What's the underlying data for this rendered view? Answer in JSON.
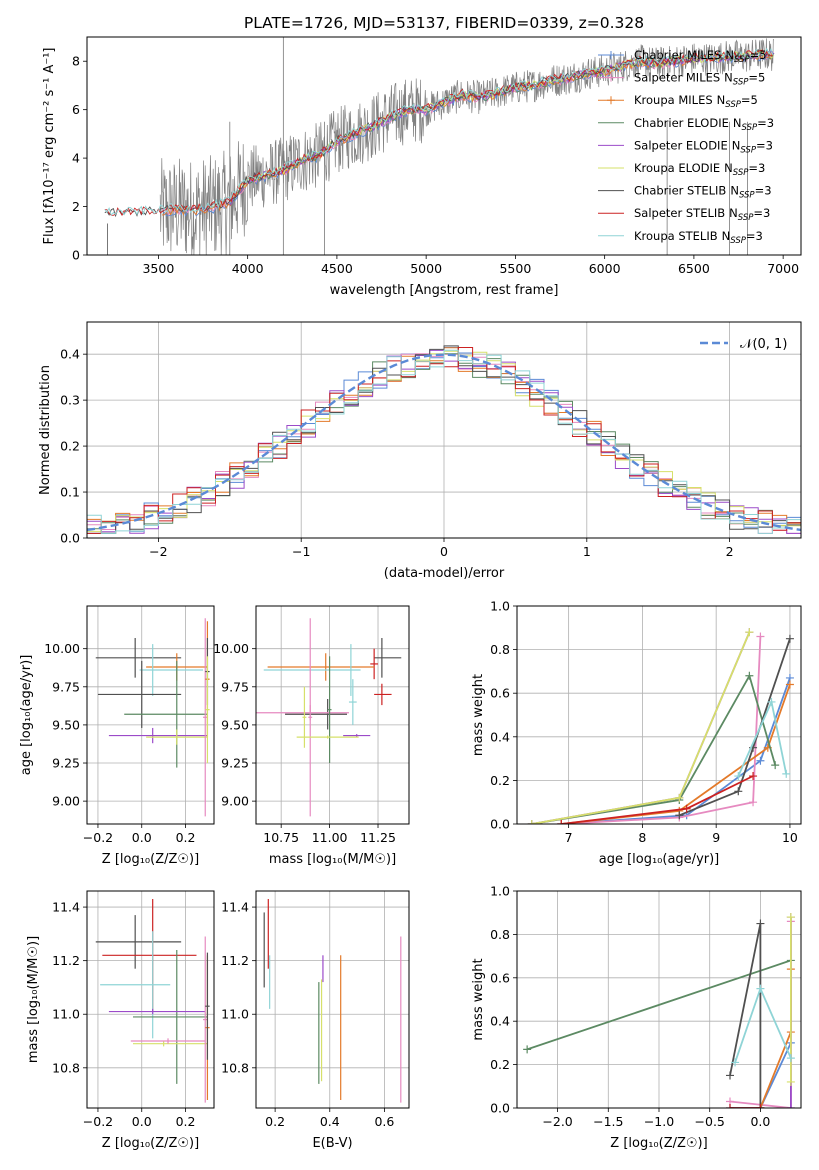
{
  "figure": {
    "title": "PLATE=1726, MJD=53137, FIBERID=0339, z=0.328"
  },
  "colors": {
    "Chabrier MILES": "#5b8ad6",
    "Salpeter MILES": "#e68ac0",
    "Kroupa MILES": "#e37a2a",
    "Chabrier ELODIE": "#5c8a63",
    "Salpeter ELODIE": "#9b4bc9",
    "Kroupa ELODIE": "#d6e06a",
    "Chabrier STELIB": "#505050",
    "Salpeter STELIB": "#cc2222",
    "Kroupa STELIB": "#8fd4d6",
    "data": "#808080",
    "gauss": "#5b8ad6",
    "grid": "#b0b0b0"
  },
  "chart_data": [
    {
      "id": "spectrum",
      "type": "line",
      "title": "PLATE=1726, MJD=53137, FIBERID=0339, z=0.328",
      "xlabel": "wavelength [Angstrom, rest frame]",
      "ylabel": "Flux [fλ10⁻¹⁷ erg cm⁻² s⁻¹ A⁻¹]",
      "xlim": [
        3100,
        7100
      ],
      "ylim": [
        0,
        9
      ],
      "xticks": [
        3500,
        4000,
        4500,
        5000,
        5500,
        6000,
        6500,
        7000
      ],
      "yticks": [
        0,
        2,
        4,
        6,
        8
      ],
      "grid": false,
      "legend_position": "right",
      "legend": [
        {
          "name": "Chabrier MILES",
          "sub": "SSP",
          "value": "5"
        },
        {
          "name": "Salpeter MILES",
          "sub": "SSP",
          "value": "5"
        },
        {
          "name": "Kroupa MILES",
          "sub": "SSP",
          "value": "5"
        },
        {
          "name": "Chabrier ELODIE",
          "sub": "SSP",
          "value": "3"
        },
        {
          "name": "Salpeter ELODIE",
          "sub": "SSP",
          "value": "3"
        },
        {
          "name": "Kroupa ELODIE",
          "sub": "SSP",
          "value": "3"
        },
        {
          "name": "Chabrier STELIB",
          "sub": "SSP",
          "value": "3"
        },
        {
          "name": "Salpeter STELIB",
          "sub": "SSP",
          "value": "3"
        },
        {
          "name": "Kroupa STELIB",
          "sub": "SSP",
          "value": "3"
        }
      ],
      "model_continuum": {
        "x": [
          3200,
          3300,
          3400,
          3500,
          3600,
          3700,
          3800,
          3900,
          4000,
          4100,
          4200,
          4300,
          4400,
          4500,
          4600,
          4700,
          4800,
          4900,
          5000,
          5100,
          5200,
          5300,
          5400,
          5500,
          5600,
          5700,
          5800,
          5900,
          6000,
          6100,
          6200,
          6300,
          6400,
          6500,
          6600,
          6700,
          6800,
          6900,
          7000
        ],
        "y": [
          1.7,
          1.7,
          1.75,
          1.8,
          1.9,
          1.85,
          1.95,
          2.2,
          3.1,
          3.3,
          3.5,
          3.9,
          4.1,
          4.7,
          5.0,
          5.3,
          5.7,
          6.0,
          6.0,
          6.3,
          6.6,
          6.5,
          6.7,
          6.9,
          7.0,
          7.2,
          7.3,
          7.5,
          7.6,
          7.8,
          8.0,
          7.9,
          8.0,
          8.1,
          8.1,
          8.2,
          8.2,
          8.3,
          8.2
        ]
      },
      "observed_range": {
        "start": 3510,
        "end": 6950,
        "step": 3
      }
    },
    {
      "id": "residuals",
      "type": "line",
      "xlabel": "(data-model)/error",
      "ylabel": "Normed distribution",
      "xlim": [
        -2.5,
        2.5
      ],
      "ylim": [
        0,
        0.47
      ],
      "xticks": [
        -2,
        -1,
        0,
        1,
        2
      ],
      "yticks": [
        0.0,
        0.1,
        0.2,
        0.3,
        0.4
      ],
      "grid": true,
      "legend_position": "top-right",
      "gauss_label": "𝒩(0, 1)",
      "bin_width": 0.1
    },
    {
      "id": "age_vs_Z",
      "type": "scatter",
      "xlabel": "Z [log₁₀(Z/Z☉)]",
      "ylabel": "age  [log₁₀(age/yr)]",
      "xlim": [
        -0.25,
        0.33
      ],
      "ylim": [
        8.85,
        10.28
      ],
      "xticks": [
        -0.2,
        0.0,
        0.2
      ],
      "yticks": [
        9.0,
        9.25,
        9.5,
        9.75,
        10.0
      ],
      "grid": true,
      "errorbars": [
        {
          "model": "Chabrier STELIB",
          "x": -0.03,
          "xerr": [
            0.18,
            0.21
          ],
          "y": 9.94,
          "yerr": 0.13
        },
        {
          "model": "Kroupa MILES",
          "x": 0.16,
          "xerr": [
            0.14,
            0.14
          ],
          "y": 9.88,
          "yerr": 0.09
        },
        {
          "model": "Kroupa STELIB",
          "x": 0.05,
          "xerr": [
            0.06,
            0.23
          ],
          "y": 9.86,
          "yerr": 0.17
        },
        {
          "model": "Chabrier STELIB",
          "x": 0.0,
          "xerr": [
            0.2,
            0.18
          ],
          "y": 9.7,
          "yerr": 0.22
        },
        {
          "model": "Chabrier ELODIE",
          "x": 0.16,
          "xerr": [
            0.24,
            0.14
          ],
          "y": 9.57,
          "yerr": 0.35
        },
        {
          "model": "Salpeter ELODIE",
          "x": 0.05,
          "xerr": [
            0.2,
            0.25
          ],
          "y": 9.43,
          "yerr": 0.05
        },
        {
          "model": "Kroupa ELODIE",
          "x": 0.16,
          "xerr": [
            0.14,
            0.14
          ],
          "y": 9.42,
          "yerr": 0.05
        },
        {
          "model": "Salpeter MILES",
          "x": 0.29,
          "xerr": [
            0.01,
            0.01
          ],
          "y": 9.55,
          "yerr": 0.65
        },
        {
          "model": "Kroupa MILES",
          "x": 0.3,
          "xerr": [
            0.01,
            0.01
          ],
          "y": 9.8,
          "yerr": 0.38
        },
        {
          "model": "Chabrier STELIB",
          "x": 0.3,
          "xerr": [
            0.01,
            0.01
          ],
          "y": 9.85,
          "yerr": 0.22
        },
        {
          "model": "Kroupa ELODIE",
          "x": 0.3,
          "xerr": [
            0.01,
            0.01
          ],
          "y": 9.6,
          "yerr": 0.35
        }
      ]
    },
    {
      "id": "age_vs_mass",
      "type": "scatter",
      "xlabel": "mass [log₁₀(M/M☉)]",
      "ylabel": "",
      "xlim": [
        10.62,
        11.41
      ],
      "ylim": [
        8.85,
        10.28
      ],
      "xticks": [
        10.75,
        11.0,
        11.25
      ],
      "xticklabels": [
        "10.75",
        "11.00",
        "11.25"
      ],
      "yticks": [
        9.0,
        9.25,
        9.5,
        9.75,
        10.0
      ],
      "grid": true,
      "errorbars": [
        {
          "model": "Chabrier STELIB",
          "x": 11.27,
          "xerr": [
            0.04,
            0.1
          ],
          "y": 9.94,
          "yerr": 0.13
        },
        {
          "model": "Salpeter STELIB",
          "x": 11.23,
          "xerr": [
            0.02,
            0.02
          ],
          "y": 9.9,
          "yerr": 0.1
        },
        {
          "model": "Kroupa MILES",
          "x": 10.98,
          "xerr": [
            0.3,
            0.25
          ],
          "y": 9.88,
          "yerr": 0.09
        },
        {
          "model": "Kroupa STELIB",
          "x": 11.11,
          "xerr": [
            0.45,
            0.05
          ],
          "y": 9.86,
          "yerr": 0.17
        },
        {
          "model": "Salpeter MILES",
          "x": 10.9,
          "xerr": [
            0.01,
            0.01
          ],
          "y": 9.55,
          "yerr": 0.65
        },
        {
          "model": "Salpeter STELIB",
          "x": 11.27,
          "xerr": [
            0.04,
            0.05
          ],
          "y": 9.7,
          "yerr": 0.07
        },
        {
          "model": "Chabrier STELIB",
          "x": 10.99,
          "xerr": [
            0.22,
            0.1
          ],
          "y": 9.57,
          "yerr": 0.1
        },
        {
          "model": "Salpeter MILES",
          "x": 10.9,
          "xerr": [
            0.32,
            0.2
          ],
          "y": 9.58,
          "yerr": 0.05
        },
        {
          "model": "Kroupa STELIB",
          "x": 11.12,
          "xerr": [
            0.02,
            0.02
          ],
          "y": 9.65,
          "yerr": 0.15
        },
        {
          "model": "Chabrier ELODIE",
          "x": 11.0,
          "xerr": [
            0.01,
            0.01
          ],
          "y": 9.6,
          "yerr": 0.35
        },
        {
          "model": "Salpeter ELODIE",
          "x": 11.14,
          "xerr": [
            0.07,
            0.07
          ],
          "y": 9.43,
          "yerr": 0.01
        },
        {
          "model": "Kroupa ELODIE",
          "x": 10.99,
          "xerr": [
            0.16,
            0.16
          ],
          "y": 9.42,
          "yerr": 0.01
        },
        {
          "model": "Kroupa ELODIE",
          "x": 10.87,
          "xerr": [
            0.01,
            0.01
          ],
          "y": 9.55,
          "yerr": 0.2
        }
      ]
    },
    {
      "id": "weight_vs_age",
      "type": "line",
      "xlabel": "age  [log₁₀(age/yr)]",
      "ylabel": "mass weight",
      "xlim": [
        6.3,
        10.15
      ],
      "ylim": [
        0,
        1
      ],
      "xticks": [
        7,
        8,
        9,
        10
      ],
      "yticks": [
        0.0,
        0.2,
        0.4,
        0.6,
        0.8,
        1.0
      ],
      "grid": true,
      "series": [
        {
          "model": "Chabrier MILES",
          "x": [
            6.9,
            8.6,
            9.6,
            10.0
          ],
          "y": [
            0.0,
            0.04,
            0.29,
            0.67
          ]
        },
        {
          "model": "Salpeter MILES",
          "x": [
            6.9,
            8.5,
            9.5,
            9.6
          ],
          "y": [
            0.0,
            0.03,
            0.1,
            0.86
          ]
        },
        {
          "model": "Kroupa MILES",
          "x": [
            6.9,
            8.5,
            9.7,
            10.0
          ],
          "y": [
            0.0,
            0.06,
            0.35,
            0.64
          ]
        },
        {
          "model": "Chabrier ELODIE",
          "x": [
            6.5,
            8.5,
            9.45,
            9.8
          ],
          "y": [
            0.0,
            0.11,
            0.68,
            0.27
          ]
        },
        {
          "model": "Salpeter ELODIE",
          "x": [
            6.5,
            8.5,
            9.45
          ],
          "y": [
            0.0,
            0.12,
            0.88
          ]
        },
        {
          "model": "Kroupa ELODIE",
          "x": [
            6.5,
            8.5,
            9.45
          ],
          "y": [
            0.0,
            0.12,
            0.88
          ]
        },
        {
          "model": "Chabrier STELIB",
          "x": [
            8.5,
            9.3,
            9.5,
            10.0
          ],
          "y": [
            0.04,
            0.15,
            0.35,
            0.85
          ]
        },
        {
          "model": "Salpeter STELIB",
          "x": [
            6.9,
            8.6,
            9.5
          ],
          "y": [
            0.0,
            0.07,
            0.22
          ]
        },
        {
          "model": "Kroupa STELIB",
          "x": [
            9.3,
            9.75,
            9.95
          ],
          "y": [
            0.22,
            0.56,
            0.23
          ]
        }
      ]
    },
    {
      "id": "mass_vs_Z",
      "type": "scatter",
      "xlabel": "Z [log₁₀(Z/Z☉)]",
      "ylabel": "mass [log₁₀(M/M☉)]",
      "xlim": [
        -0.25,
        0.33
      ],
      "ylim": [
        10.65,
        11.46
      ],
      "xticks": [
        -0.2,
        0.0,
        0.2
      ],
      "yticks": [
        10.8,
        11.0,
        11.2,
        11.4
      ],
      "grid": true,
      "errorbars": [
        {
          "model": "Chabrier STELIB",
          "x": -0.03,
          "xerr": [
            0.18,
            0.21
          ],
          "y": 11.27,
          "yerr": 0.1
        },
        {
          "model": "Salpeter STELIB",
          "x": 0.05,
          "xerr": [
            0.23,
            0.2
          ],
          "y": 11.22,
          "yerr": 0.21
        },
        {
          "model": "Kroupa STELIB",
          "x": 0.05,
          "xerr": [
            0.24,
            0.08
          ],
          "y": 11.11,
          "yerr": 0.2
        },
        {
          "model": "Chabrier ELODIE",
          "x": 0.16,
          "xerr": [
            0.2,
            0.14
          ],
          "y": 10.99,
          "yerr": 0.25
        },
        {
          "model": "Salpeter ELODIE",
          "x": 0.05,
          "xerr": [
            0.2,
            0.24
          ],
          "y": 11.01,
          "yerr": 0.01
        },
        {
          "model": "Kroupa ELODIE",
          "x": 0.1,
          "xerr": [
            0.14,
            0.2
          ],
          "y": 10.89,
          "yerr": 0.01
        },
        {
          "model": "Salpeter MILES",
          "x": 0.29,
          "xerr": [
            0.01,
            0.01
          ],
          "y": 10.98,
          "yerr": 0.31
        },
        {
          "model": "Kroupa MILES",
          "x": 0.3,
          "xerr": [
            0.01,
            0.01
          ],
          "y": 10.95,
          "yerr": 0.27
        },
        {
          "model": "Chabrier STELIB",
          "x": 0.3,
          "xerr": [
            0.01,
            0.01
          ],
          "y": 11.03,
          "yerr": 0.2
        },
        {
          "model": "Salpeter MILES",
          "x": 0.12,
          "xerr": [
            0.17,
            0.17
          ],
          "y": 10.9,
          "yerr": 0.01
        }
      ]
    },
    {
      "id": "mass_vs_EBV",
      "type": "scatter",
      "xlabel": "E(B-V)",
      "ylabel": "",
      "xlim": [
        0.13,
        0.69
      ],
      "ylim": [
        10.65,
        11.46
      ],
      "xticks": [
        0.2,
        0.4,
        0.6
      ],
      "yticks": [
        10.8,
        11.0,
        11.2,
        11.4
      ],
      "grid": true,
      "errorbars": [
        {
          "model": "Chabrier STELIB",
          "x": 0.16,
          "y": 11.24,
          "yerr": 0.14
        },
        {
          "model": "Salpeter STELIB",
          "x": 0.175,
          "y": 11.3,
          "yerr": 0.13
        },
        {
          "model": "Kroupa STELIB",
          "x": 0.18,
          "y": 11.12,
          "yerr": 0.1
        },
        {
          "model": "Salpeter ELODIE",
          "x": 0.375,
          "y": 11.17,
          "yerr": 0.05
        },
        {
          "model": "Chabrier ELODIE",
          "x": 0.36,
          "y": 10.93,
          "yerr": 0.19
        },
        {
          "model": "Kroupa ELODIE",
          "x": 0.37,
          "y": 10.94,
          "yerr": 0.19
        },
        {
          "model": "Kroupa MILES",
          "x": 0.44,
          "y": 10.95,
          "yerr": 0.27
        },
        {
          "model": "Salpeter MILES",
          "x": 0.66,
          "y": 10.98,
          "yerr": 0.31
        }
      ]
    },
    {
      "id": "weight_vs_Z",
      "type": "line",
      "xlabel": "Z [log₁₀(Z/Z☉)]",
      "ylabel": "mass weight",
      "xlim": [
        -2.4,
        0.4
      ],
      "ylim": [
        0,
        1
      ],
      "xticks": [
        -2.0,
        -1.5,
        -1.0,
        -0.5,
        0.0
      ],
      "yticks": [
        0.0,
        0.2,
        0.4,
        0.6,
        0.8,
        1.0
      ],
      "grid": true,
      "series": [
        {
          "model": "Chabrier MILES",
          "x": [
            -0.3,
            0.0,
            0.3
          ],
          "y": [
            0.0,
            0.0,
            0.3
          ]
        },
        {
          "model": "Salpeter MILES",
          "x": [
            -0.3,
            0.3,
            0.3
          ],
          "y": [
            0.03,
            0.0,
            0.86
          ]
        },
        {
          "model": "Kroupa MILES",
          "x": [
            0.0,
            0.3,
            0.3
          ],
          "y": [
            0.0,
            0.35,
            0.64
          ]
        },
        {
          "model": "Chabrier ELODIE",
          "x": [
            -2.3,
            0.3
          ],
          "y": [
            0.27,
            0.68
          ]
        },
        {
          "model": "Salpeter ELODIE",
          "x": [
            0.3,
            0.3
          ],
          "y": [
            0.0,
            0.88
          ]
        },
        {
          "model": "Kroupa ELODIE",
          "x": [
            0.3,
            0.3
          ],
          "y": [
            0.12,
            0.88
          ]
        },
        {
          "model": "Chabrier STELIB",
          "x": [
            -0.3,
            0.0,
            0.0
          ],
          "y": [
            0.15,
            0.85,
            0.0
          ]
        },
        {
          "model": "Salpeter STELIB",
          "x": [
            -0.3,
            0.0
          ],
          "y": [
            0.0,
            0.0
          ]
        },
        {
          "model": "Kroupa STELIB",
          "x": [
            -0.25,
            0.0,
            0.3
          ],
          "y": [
            0.21,
            0.55,
            0.23
          ]
        }
      ]
    }
  ]
}
